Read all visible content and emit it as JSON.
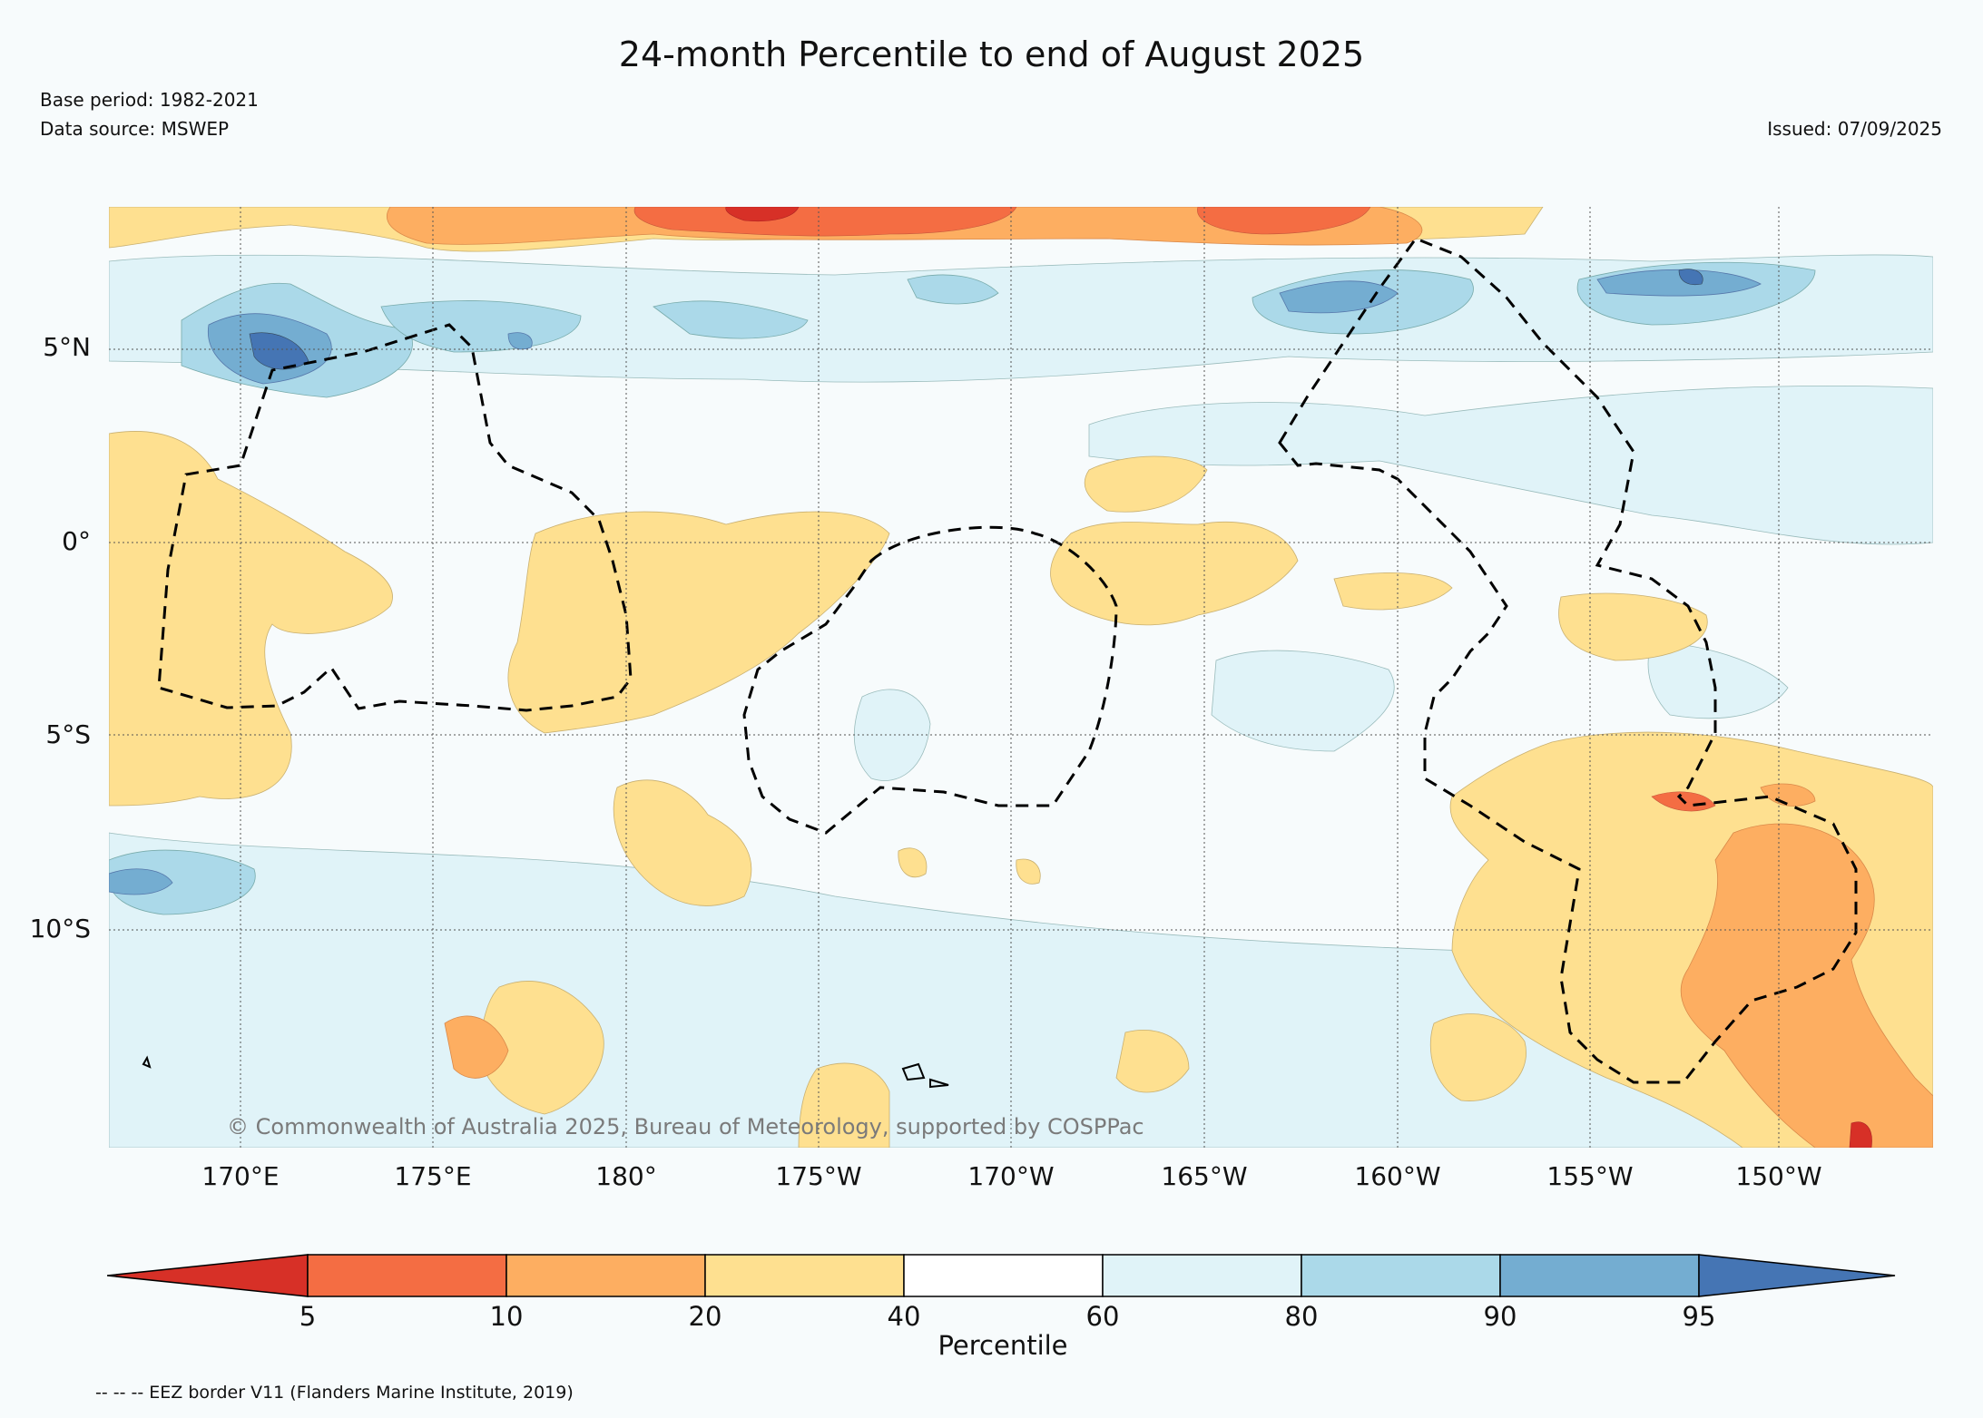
{
  "title": "24-month Percentile to end of August 2025",
  "base_period": "Base period: 1982-2021",
  "data_source": "Data source: MSWEP",
  "issued": "Issued: 07/09/2025",
  "copyright": "© Commonwealth of Australia 2025, Bureau of Meteorology, supported by COSPPac",
  "footer_note": "-- -- -- EEZ border V11 (Flanders Marine Institute, 2019)",
  "map": {
    "lat_labels": [
      "5°N",
      "0°",
      "5°S",
      "10°S"
    ],
    "lon_labels": [
      "170°E",
      "175°E",
      "180°",
      "175°W",
      "170°W",
      "165°W",
      "160°W",
      "155°W",
      "150°W"
    ]
  },
  "colorbar": {
    "title": "Percentile",
    "ticks": [
      "5",
      "10",
      "20",
      "40",
      "60",
      "80",
      "90",
      "95"
    ],
    "colors": [
      "#d73027",
      "#f46d43",
      "#fdae61",
      "#fee090",
      "#ffffff",
      "#e0f3f8",
      "#abd9e9",
      "#74add1",
      "#4575b4"
    ]
  },
  "palette": {
    "p5_10": "#f46d43",
    "p10_20": "#fdae61",
    "p20_40": "#fee090",
    "p60_80": "#e0f3f8",
    "p80_90": "#abd9e9",
    "p90_95": "#74add1",
    "p95": "#4575b4",
    "below5": "#d73027"
  }
}
